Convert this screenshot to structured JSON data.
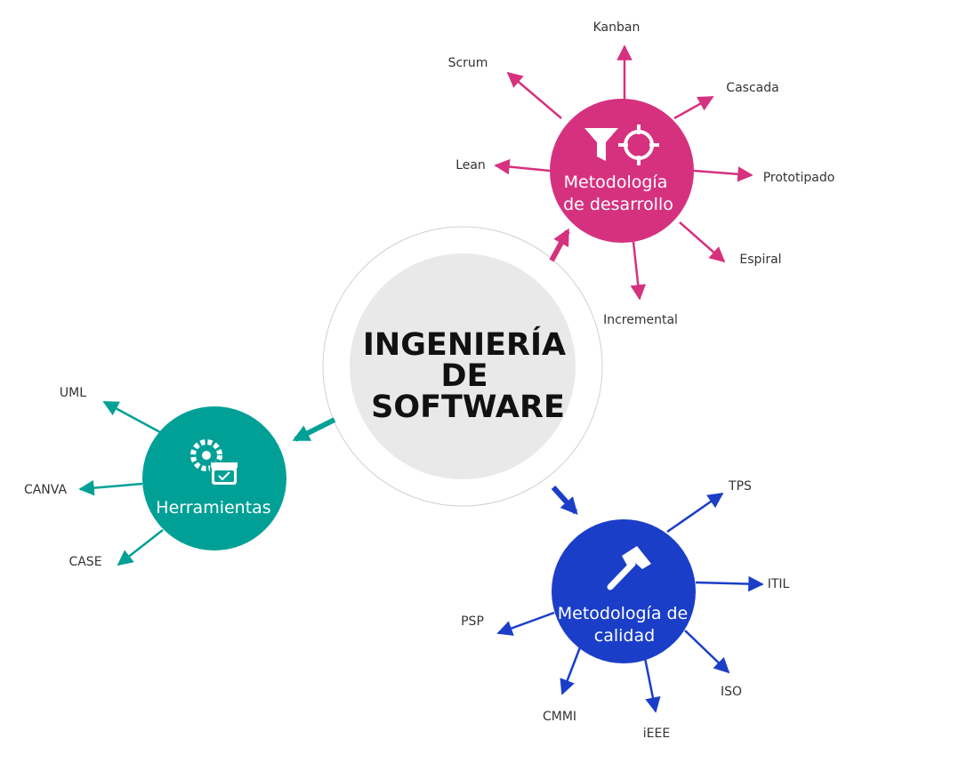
{
  "center": {
    "title_lines": [
      "INGENIERÍA",
      "DE",
      "SOFTWARE"
    ]
  },
  "nodes": [
    {
      "id": "desarrollo",
      "label_lines": [
        "Metodología",
        "de desarrollo"
      ],
      "color": "#d6317f",
      "icon": "funnel-and-target-icon",
      "leaves": [
        "Kanban",
        "Scrum",
        "Cascada",
        "Lean",
        "Prototipado",
        "Espiral",
        "Incremental"
      ]
    },
    {
      "id": "herramientas",
      "label_lines": [
        "Herramientas"
      ],
      "color": "#00a096",
      "icon": "gears-and-calendar-icon",
      "leaves": [
        "UML",
        "CANVA",
        "CASE"
      ]
    },
    {
      "id": "calidad",
      "label_lines": [
        "Metodología de",
        "calidad"
      ],
      "color": "#1a3ec8",
      "icon": "hammer-icon",
      "leaves": [
        "TPS",
        "ITIL",
        "PSP",
        "ISO",
        "CMMI",
        "iEEE"
      ]
    }
  ]
}
